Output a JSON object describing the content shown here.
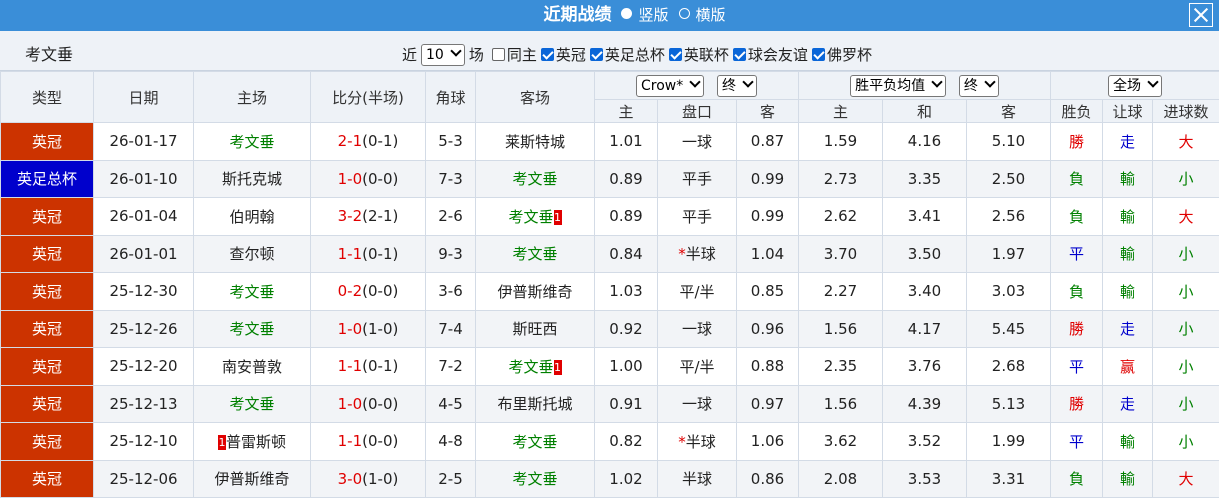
{
  "header": {
    "title": "近期战绩",
    "layouts": [
      "竖版",
      "横版"
    ],
    "selected_layout": 0
  },
  "filter": {
    "team": "考文垂",
    "prefix": "近",
    "count": "10",
    "suffix": "场",
    "options": [
      {
        "label": "同主",
        "checked": false
      },
      {
        "label": "英冠",
        "checked": true
      },
      {
        "label": "英足总杯",
        "checked": true
      },
      {
        "label": "英联杯",
        "checked": true
      },
      {
        "label": "球会友谊",
        "checked": true
      },
      {
        "label": "佛罗杯",
        "checked": true
      }
    ]
  },
  "selectors": {
    "company": "Crow*",
    "company_stage": "终",
    "average": "胜平负均值",
    "average_stage": "终",
    "period": "全场"
  },
  "columns": {
    "type": "类型",
    "date": "日期",
    "home": "主场",
    "score": "比分(半场)",
    "corners": "角球",
    "away": "客场",
    "odds_home": "主",
    "handicap": "盘口",
    "odds_away": "客",
    "avg_home": "主",
    "avg_draw": "和",
    "avg_away": "客",
    "result": "胜负",
    "handicap_result": "让球",
    "goals": "进球数"
  },
  "colors": {
    "team": "#008000",
    "score": "#e00000",
    "card": "#e00000",
    "mark": "#e00000",
    "type": {
      "英冠": "#cc3300",
      "英足总杯": "#0000cc"
    },
    "result": {
      "勝": "#e00000",
      "負": "#008000",
      "平": "#0000cc"
    },
    "handicap_result": {
      "走": "#0000cc",
      "輸": "#008000",
      "赢": "#e00000"
    },
    "goals": {
      "大": "#e00000",
      "小": "#008000"
    }
  },
  "table": {
    "rows": [
      {
        "type": "英冠",
        "date": "26-01-17",
        "home": "考文垂",
        "score": "2-1",
        "half": "(0-1)",
        "corners": "5-3",
        "away": "莱斯特城",
        "odds_home": "1.01",
        "handicap": "一球",
        "odds_away": "0.87",
        "avg_home": "1.59",
        "avg_draw": "4.16",
        "avg_away": "5.10",
        "result": "勝",
        "handicap_result": "走",
        "goals": "大"
      },
      {
        "type": "英足总杯",
        "date": "26-01-10",
        "home": "斯托克城",
        "score": "1-0",
        "half": "(0-0)",
        "corners": "7-3",
        "away": "考文垂",
        "odds_home": "0.89",
        "handicap": "平手",
        "odds_away": "0.99",
        "avg_home": "2.73",
        "avg_draw": "3.35",
        "avg_away": "2.50",
        "result": "負",
        "handicap_result": "輸",
        "goals": "小"
      },
      {
        "type": "英冠",
        "date": "26-01-04",
        "home": "伯明翰",
        "score": "3-2",
        "half": "(2-1)",
        "corners": "2-6",
        "away": "考文垂",
        "away_card": "1",
        "odds_home": "0.89",
        "handicap": "平手",
        "odds_away": "0.99",
        "avg_home": "2.62",
        "avg_draw": "3.41",
        "avg_away": "2.56",
        "result": "負",
        "handicap_result": "輸",
        "goals": "大"
      },
      {
        "type": "英冠",
        "date": "26-01-01",
        "home": "查尔顿",
        "score": "1-1",
        "half": "(0-1)",
        "corners": "9-3",
        "away": "考文垂",
        "odds_home": "0.84",
        "handicap_mark": "*",
        "handicap": "半球",
        "odds_away": "1.04",
        "avg_home": "3.70",
        "avg_draw": "3.50",
        "avg_away": "1.97",
        "result": "平",
        "handicap_result": "輸",
        "goals": "小"
      },
      {
        "type": "英冠",
        "date": "25-12-30",
        "home": "考文垂",
        "score": "0-2",
        "half": "(0-0)",
        "corners": "3-6",
        "away": "伊普斯维奇",
        "odds_home": "1.03",
        "handicap": "平/半",
        "odds_away": "0.85",
        "avg_home": "2.27",
        "avg_draw": "3.40",
        "avg_away": "3.03",
        "result": "負",
        "handicap_result": "輸",
        "goals": "小"
      },
      {
        "type": "英冠",
        "date": "25-12-26",
        "home": "考文垂",
        "score": "1-0",
        "half": "(1-0)",
        "corners": "7-4",
        "away": "斯旺西",
        "odds_home": "0.92",
        "handicap": "一球",
        "odds_away": "0.96",
        "avg_home": "1.56",
        "avg_draw": "4.17",
        "avg_away": "5.45",
        "result": "勝",
        "handicap_result": "走",
        "goals": "小"
      },
      {
        "type": "英冠",
        "date": "25-12-20",
        "home": "南安普敦",
        "score": "1-1",
        "half": "(0-1)",
        "corners": "7-2",
        "away": "考文垂",
        "away_card": "1",
        "odds_home": "1.00",
        "handicap": "平/半",
        "odds_away": "0.88",
        "avg_home": "2.35",
        "avg_draw": "3.76",
        "avg_away": "2.68",
        "result": "平",
        "handicap_result": "赢",
        "goals": "小"
      },
      {
        "type": "英冠",
        "date": "25-12-13",
        "home": "考文垂",
        "score": "1-0",
        "half": "(0-0)",
        "corners": "4-5",
        "away": "布里斯托城",
        "odds_home": "0.91",
        "handicap": "一球",
        "odds_away": "0.97",
        "avg_home": "1.56",
        "avg_draw": "4.39",
        "avg_away": "5.13",
        "result": "勝",
        "handicap_result": "走",
        "goals": "小"
      },
      {
        "type": "英冠",
        "date": "25-12-10",
        "home_card": "1",
        "home": "普雷斯顿",
        "score": "1-1",
        "half": "(0-0)",
        "corners": "4-8",
        "away": "考文垂",
        "odds_home": "0.82",
        "handicap_mark": "*",
        "handicap": "半球",
        "odds_away": "1.06",
        "avg_home": "3.62",
        "avg_draw": "3.52",
        "avg_away": "1.99",
        "result": "平",
        "handicap_result": "輸",
        "goals": "小"
      },
      {
        "type": "英冠",
        "date": "25-12-06",
        "home": "伊普斯维奇",
        "score": "3-0",
        "half": "(1-0)",
        "corners": "2-5",
        "away": "考文垂",
        "odds_home": "1.02",
        "handicap": "半球",
        "odds_away": "0.86",
        "avg_home": "2.08",
        "avg_draw": "3.53",
        "avg_away": "3.31",
        "result": "負",
        "handicap_result": "輸",
        "goals": "大"
      }
    ]
  }
}
